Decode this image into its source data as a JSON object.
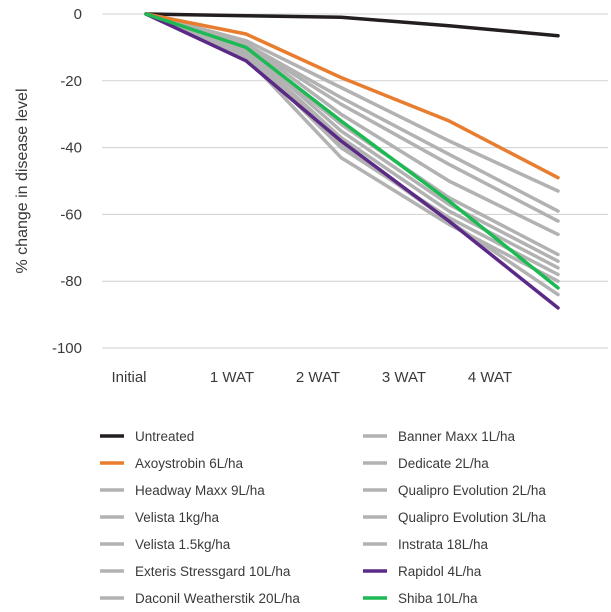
{
  "chart_data": {
    "type": "line",
    "title": "",
    "xlabel": "",
    "ylabel": "% change in disease level",
    "categories": [
      "Initial",
      "1 WAT",
      "2 WAT",
      "3 WAT",
      "4 WAT"
    ],
    "ylim": [
      -100,
      0
    ],
    "yticks": [
      0,
      -20,
      -40,
      -60,
      -80,
      -100
    ],
    "grid": "horizontal",
    "legend_position": "bottom",
    "series": [
      {
        "name": "Untreated",
        "color": "#231f20",
        "values": [
          0,
          -0.5,
          -1,
          -3.5,
          -6.5
        ]
      },
      {
        "name": "Axoystrobin 6L/ha",
        "color": "#e87d2f",
        "values": [
          0,
          -6,
          -19,
          -32,
          -49
        ]
      },
      {
        "name": "Headway Maxx 9L/ha",
        "color": "#b2b2b2",
        "values": [
          0,
          -8,
          -22,
          -38,
          -53
        ]
      },
      {
        "name": "Velista 1kg/ha",
        "color": "#b2b2b2",
        "values": [
          0,
          -9,
          -25,
          -42,
          -59
        ]
      },
      {
        "name": "Velista 1.5kg/ha",
        "color": "#b2b2b2",
        "values": [
          0,
          -9,
          -27,
          -45,
          -62
        ]
      },
      {
        "name": "Exteris Stressgard 10L/ha",
        "color": "#b2b2b2",
        "values": [
          0,
          -10,
          -35,
          -57,
          -74
        ]
      },
      {
        "name": "Daconil Weatherstik 20L/ha",
        "color": "#b2b2b2",
        "values": [
          0,
          -11,
          -37,
          -59,
          -76
        ]
      },
      {
        "name": "Banner Maxx 1L/ha",
        "color": "#b2b2b2",
        "values": [
          0,
          -12,
          -40,
          -61,
          -78
        ]
      },
      {
        "name": "Dedicate 2L/ha",
        "color": "#b2b2b2",
        "values": [
          0,
          -13,
          -43,
          -63,
          -80
        ]
      },
      {
        "name": "Qualipro Evolution 2L/ha",
        "color": "#b2b2b2",
        "values": [
          0,
          -9,
          -30,
          -50,
          -66
        ]
      },
      {
        "name": "Qualipro Evolution 3L/ha",
        "color": "#b2b2b2",
        "values": [
          0,
          -10,
          -33,
          -55,
          -72
        ]
      },
      {
        "name": "Instrata 18L/ha",
        "color": "#b2b2b2",
        "values": [
          0,
          -11,
          -39,
          -62,
          -84
        ]
      },
      {
        "name": "Rapidol 4L/ha",
        "color": "#5b2a86",
        "values": [
          0,
          -14,
          -38,
          -62,
          -88
        ]
      },
      {
        "name": "Shiba 10L/ha",
        "color": "#1db954",
        "values": [
          0,
          -10,
          -32,
          -56,
          -82
        ]
      }
    ]
  }
}
